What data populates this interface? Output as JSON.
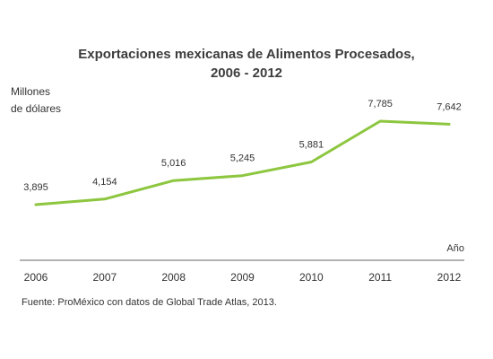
{
  "chart_data": {
    "type": "line",
    "title_line1": "Exportaciones mexicanas de Alimentos Procesados,",
    "title_line2": "2006 - 2012",
    "ylabel_line1": "Millones",
    "ylabel_line2": "de dólares",
    "xlabel": "Año",
    "categories": [
      "2006",
      "2007",
      "2008",
      "2009",
      "2010",
      "2011",
      "2012"
    ],
    "values": [
      3895,
      4154,
      5016,
      5245,
      5881,
      7785,
      7642
    ],
    "value_labels": [
      "3,895",
      "4,154",
      "5,016",
      "5,245",
      "5,881",
      "7,785",
      "7,642"
    ],
    "legend": "none",
    "grid": false,
    "line_color": "#8dc63f",
    "axis_color": "#666666",
    "source": "Fuente: ProMéxico con datos de Global Trade Atlas, 2013."
  }
}
